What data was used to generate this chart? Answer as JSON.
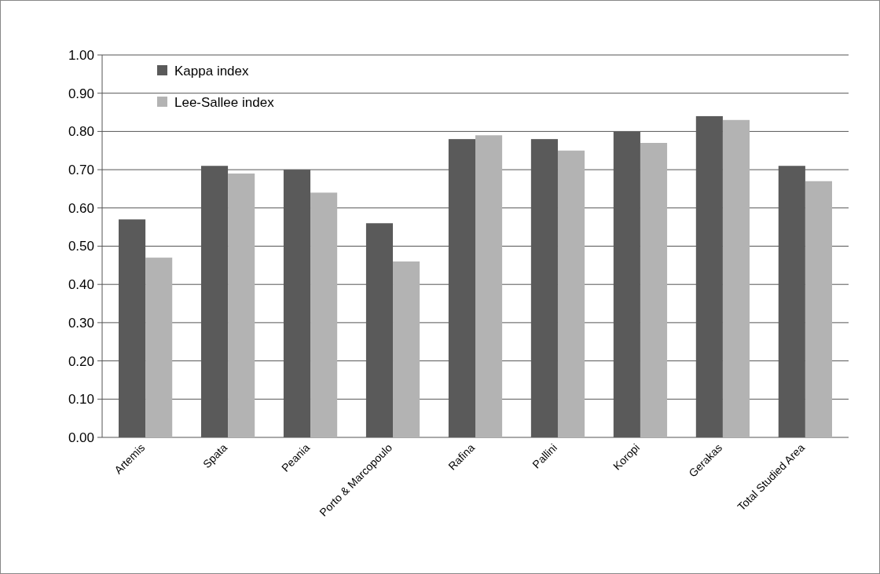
{
  "chart_data": {
    "type": "bar",
    "categories": [
      "Artemis",
      "Spata",
      "Peania",
      "Porto & Marcopoulo",
      "Rafina",
      "Pallini",
      "Koropi",
      "Gerakas",
      "Total Studied Area"
    ],
    "series": [
      {
        "name": "Kappa index",
        "color": "#5a5a5a",
        "values": [
          0.57,
          0.71,
          0.7,
          0.56,
          0.78,
          0.78,
          0.8,
          0.84,
          0.71
        ]
      },
      {
        "name": "Lee-Sallee index",
        "color": "#b3b3b3",
        "values": [
          0.47,
          0.69,
          0.64,
          0.46,
          0.79,
          0.75,
          0.77,
          0.83,
          0.67
        ]
      }
    ],
    "ylim": [
      0,
      1
    ],
    "yticks": [
      {
        "value": 0,
        "label": "0.00"
      },
      {
        "value": 0.1,
        "label": "0.10"
      },
      {
        "value": 0.2,
        "label": "0.20"
      },
      {
        "value": 0.3,
        "label": "0.30"
      },
      {
        "value": 0.4,
        "label": "0.40"
      },
      {
        "value": 0.5,
        "label": "0.50"
      },
      {
        "value": 0.6,
        "label": "0.60"
      },
      {
        "value": 0.7,
        "label": "0.70"
      },
      {
        "value": 0.8,
        "label": "0.80"
      },
      {
        "value": 0.9,
        "label": "0.90"
      },
      {
        "value": 1,
        "label": "1.00"
      }
    ],
    "grid": "y",
    "legend": "top left"
  }
}
